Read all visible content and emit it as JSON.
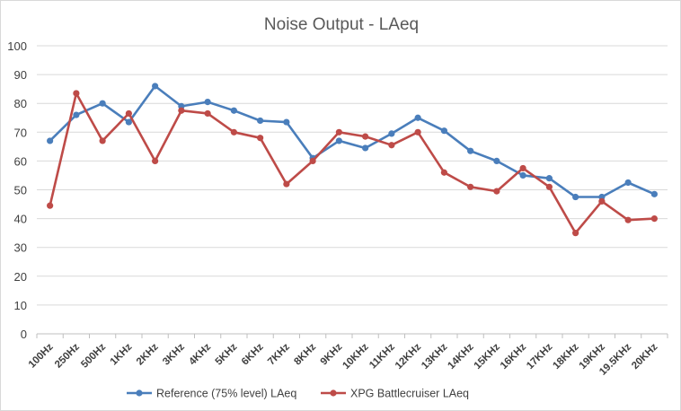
{
  "chart_data": {
    "type": "line",
    "title": "Noise Output - LAeq",
    "xlabel": "",
    "ylabel": "",
    "ylim": [
      0,
      100
    ],
    "yticks": [
      0,
      10,
      20,
      30,
      40,
      50,
      60,
      70,
      80,
      90,
      100
    ],
    "grid": true,
    "legend": "bottom",
    "categories": [
      "100Hz",
      "250Hz",
      "500Hz",
      "1KHz",
      "2KHz",
      "3KHz",
      "4KHz",
      "5KHz",
      "6KHz",
      "7KHz",
      "8KHz",
      "9KHz",
      "10KHz",
      "11KHz",
      "12KHz",
      "13KHz",
      "14KHz",
      "15KHz",
      "16KHz",
      "17KHz",
      "18KHz",
      "19KHz",
      "19.5KHz",
      "20KHz"
    ],
    "series": [
      {
        "name": "Reference (75% level) LAeq",
        "color": "#4a7ebb",
        "values": [
          67,
          76,
          80,
          73.5,
          86,
          79,
          80.5,
          77.5,
          74,
          73.5,
          61,
          67,
          64.5,
          69.5,
          75,
          70.5,
          63.5,
          60,
          55,
          54,
          47.5,
          47.5,
          52.5,
          48.5
        ]
      },
      {
        "name": "XPG Battlecruiser LAeq",
        "color": "#be4b48",
        "values": [
          44.5,
          83.5,
          67,
          76.5,
          60,
          77.5,
          76.5,
          70,
          68,
          52,
          60,
          70,
          68.5,
          65.5,
          70,
          56,
          51,
          49.5,
          57.5,
          51,
          35,
          46,
          39.5,
          40
        ]
      }
    ]
  }
}
